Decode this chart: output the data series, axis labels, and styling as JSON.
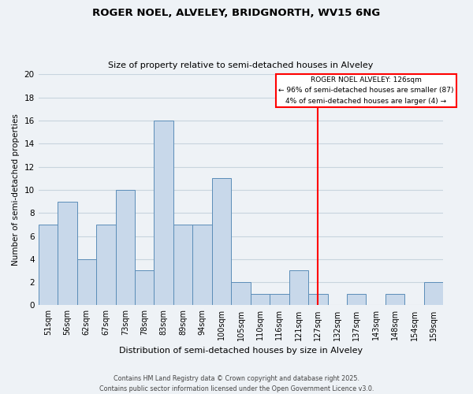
{
  "title": "ROGER NOEL, ALVELEY, BRIDGNORTH, WV15 6NG",
  "subtitle": "Size of property relative to semi-detached houses in Alveley",
  "xlabel": "Distribution of semi-detached houses by size in Alveley",
  "ylabel": "Number of semi-detached properties",
  "bar_labels": [
    "51sqm",
    "56sqm",
    "62sqm",
    "67sqm",
    "73sqm",
    "78sqm",
    "83sqm",
    "89sqm",
    "94sqm",
    "100sqm",
    "105sqm",
    "110sqm",
    "116sqm",
    "121sqm",
    "127sqm",
    "132sqm",
    "137sqm",
    "143sqm",
    "148sqm",
    "154sqm",
    "159sqm"
  ],
  "bar_heights": [
    7,
    9,
    4,
    7,
    10,
    3,
    16,
    7,
    7,
    11,
    2,
    1,
    1,
    3,
    1,
    0,
    1,
    0,
    1,
    0,
    2
  ],
  "bar_color": "#c8d8ea",
  "bar_edge_color": "#5b8db8",
  "grid_color": "#c8d4de",
  "background_color": "#eef2f6",
  "vline_x": 14,
  "vline_color": "red",
  "annotation_title": "ROGER NOEL ALVELEY: 126sqm",
  "annotation_line1": "← 96% of semi-detached houses are smaller (87)",
  "annotation_line2": "4% of semi-detached houses are larger (4) →",
  "annotation_box_color": "white",
  "annotation_box_edge": "red",
  "ylim": [
    0,
    20
  ],
  "yticks": [
    0,
    2,
    4,
    6,
    8,
    10,
    12,
    14,
    16,
    18,
    20
  ],
  "footer_line1": "Contains HM Land Registry data © Crown copyright and database right 2025.",
  "footer_line2": "Contains public sector information licensed under the Open Government Licence v3.0."
}
